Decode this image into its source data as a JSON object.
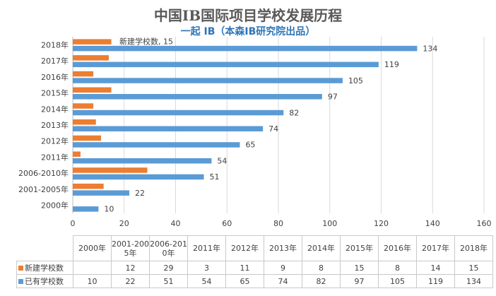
{
  "colors": {
    "new": "#ed7d31",
    "existing": "#5b9bd5",
    "grid": "#d9d9d9",
    "axis": "#bfbfbf"
  },
  "chart_data": {
    "type": "bar",
    "orientation": "horizontal",
    "title": "中国IB国际项目学校发展历程",
    "subtitle": "一起 IB（本森IB研究院出品）",
    "categories": [
      "2000年",
      "2001-2005年",
      "2006-2010年",
      "2011年",
      "2012年",
      "2013年",
      "2014年",
      "2015年",
      "2016年",
      "2017年",
      "2018年"
    ],
    "table_headers": [
      "2000年",
      "2001-200\n5年",
      "2006-201\n0年",
      "2011年",
      "2012年",
      "2013年",
      "2014年",
      "2015年",
      "2016年",
      "2017年",
      "2018年"
    ],
    "series": [
      {
        "name": "新建学校数",
        "values": [
          null,
          12,
          29,
          3,
          11,
          9,
          8,
          15,
          8,
          14,
          15
        ]
      },
      {
        "name": "已有学校数",
        "values": [
          10,
          22,
          51,
          54,
          65,
          74,
          82,
          97,
          105,
          119,
          134
        ]
      }
    ],
    "annotations": [
      "新建学校数, 15"
    ],
    "xlim": [
      0,
      160
    ],
    "xticks": [
      0,
      20,
      40,
      60,
      80,
      100,
      120,
      140,
      160
    ],
    "grid": true,
    "legend": "data-table"
  }
}
